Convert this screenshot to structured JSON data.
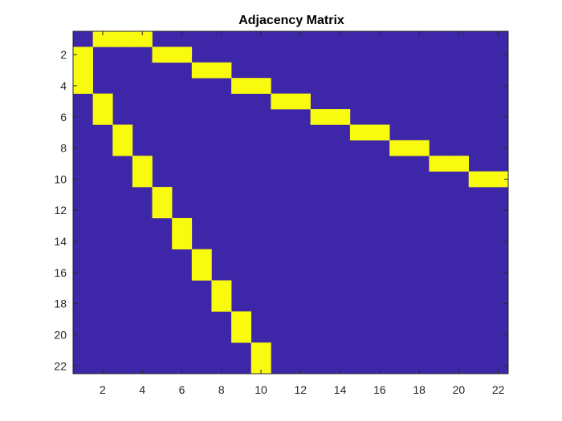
{
  "chart_data": {
    "type": "heatmap",
    "title": "Adjacency Matrix",
    "xlabel": "",
    "ylabel": "",
    "xlim": [
      0.5,
      22.5
    ],
    "ylim": [
      0.5,
      22.5
    ],
    "y_direction": "reverse",
    "grid": false,
    "colors": {
      "zero": "#3e26a8",
      "one": "#f9fb0e",
      "axis": "#262626"
    },
    "x_ticks": [
      2,
      4,
      6,
      8,
      10,
      12,
      14,
      16,
      18,
      20,
      22
    ],
    "y_ticks": [
      2,
      4,
      6,
      8,
      10,
      12,
      14,
      16,
      18,
      20,
      22
    ],
    "x_tick_labels": [
      "2",
      "4",
      "6",
      "8",
      "10",
      "12",
      "14",
      "16",
      "18",
      "20",
      "22"
    ],
    "y_tick_labels": [
      "2",
      "4",
      "6",
      "8",
      "10",
      "12",
      "14",
      "16",
      "18",
      "20",
      "22"
    ],
    "rows": 22,
    "cols": 22,
    "ones": [
      [
        1,
        2
      ],
      [
        1,
        3
      ],
      [
        1,
        4
      ],
      [
        2,
        1
      ],
      [
        2,
        5
      ],
      [
        2,
        6
      ],
      [
        3,
        1
      ],
      [
        3,
        7
      ],
      [
        3,
        8
      ],
      [
        4,
        1
      ],
      [
        4,
        9
      ],
      [
        4,
        10
      ],
      [
        5,
        2
      ],
      [
        5,
        11
      ],
      [
        5,
        12
      ],
      [
        6,
        2
      ],
      [
        6,
        13
      ],
      [
        6,
        14
      ],
      [
        7,
        3
      ],
      [
        7,
        15
      ],
      [
        7,
        16
      ],
      [
        8,
        3
      ],
      [
        8,
        17
      ],
      [
        8,
        18
      ],
      [
        9,
        4
      ],
      [
        9,
        19
      ],
      [
        9,
        20
      ],
      [
        10,
        4
      ],
      [
        10,
        21
      ],
      [
        10,
        22
      ],
      [
        11,
        5
      ],
      [
        12,
        5
      ],
      [
        13,
        6
      ],
      [
        14,
        6
      ],
      [
        15,
        7
      ],
      [
        16,
        7
      ],
      [
        17,
        8
      ],
      [
        18,
        8
      ],
      [
        19,
        9
      ],
      [
        20,
        9
      ],
      [
        21,
        10
      ],
      [
        22,
        10
      ]
    ]
  }
}
